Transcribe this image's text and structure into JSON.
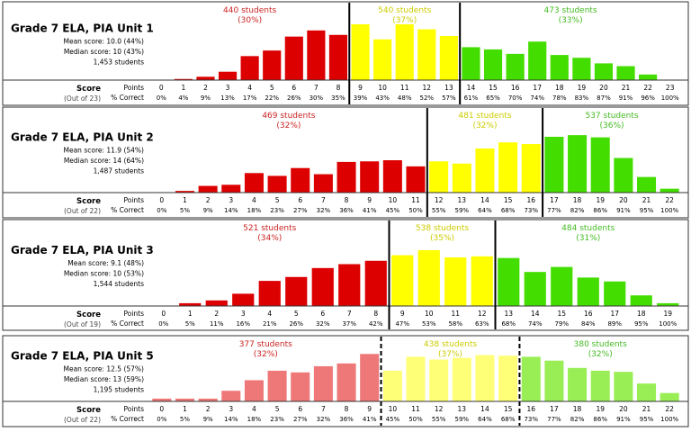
{
  "colors": {
    "red": "#dd0000",
    "yellow": "#ffff00",
    "green": "#44dd00",
    "red_light": "#ee7777",
    "yellow_light": "#ffff77",
    "green_light": "#99ee55",
    "red_text": "#cc2222",
    "yellow_text": "#cccc00",
    "green_text": "#44bb22",
    "border": "#333333"
  },
  "labels": {
    "score": "Score",
    "points": "Points",
    "pct": "% Correct"
  },
  "chart_data": [
    {
      "type": "bar",
      "title": "Grade 7 ELA, PIA Unit 1",
      "stats": [
        "Mean score: 10.0 (44%)",
        "Median score: 10 (43%)",
        "1,453 students"
      ],
      "out_of": "(Out of 23)",
      "categories": [
        "0",
        "1",
        "2",
        "3",
        "4",
        "5",
        "6",
        "7",
        "8",
        "9",
        "10",
        "11",
        "12",
        "13",
        "14",
        "15",
        "16",
        "17",
        "18",
        "19",
        "20",
        "21",
        "22",
        "23"
      ],
      "pct_correct": [
        "0%",
        "4%",
        "9%",
        "13%",
        "17%",
        "22%",
        "26%",
        "30%",
        "35%",
        "39%",
        "43%",
        "48%",
        "52%",
        "57%",
        "61%",
        "65%",
        "70%",
        "74%",
        "78%",
        "83%",
        "87%",
        "91%",
        "96%",
        "100%"
      ],
      "values": [
        0,
        2,
        6,
        15,
        43,
        53,
        78,
        89,
        81,
        100,
        73,
        100,
        91,
        79,
        59,
        55,
        47,
        69,
        45,
        40,
        30,
        25,
        10,
        0
      ],
      "ylim": [
        0,
        100
      ],
      "groups": [
        {
          "label": "440 students",
          "pct": "(30%)",
          "start": 0,
          "end": 8,
          "color": "red"
        },
        {
          "label": "540 students",
          "pct": "(37%)",
          "start": 9,
          "end": 13,
          "color": "yellow"
        },
        {
          "label": "473 students",
          "pct": "(33%)",
          "start": 14,
          "end": 23,
          "color": "green"
        }
      ],
      "dashed": false
    },
    {
      "type": "bar",
      "title": "Grade 7 ELA, PIA Unit 2",
      "stats": [
        "Mean score: 11.9 (54%)",
        "Median score: 14 (64%)",
        "1,487 students"
      ],
      "out_of": "(Out of 22)",
      "categories": [
        "0",
        "1",
        "2",
        "3",
        "4",
        "5",
        "6",
        "7",
        "8",
        "9",
        "10",
        "11",
        "12",
        "13",
        "14",
        "15",
        "16",
        "17",
        "18",
        "19",
        "20",
        "21",
        "22"
      ],
      "pct_correct": [
        "0%",
        "5%",
        "9%",
        "14%",
        "18%",
        "23%",
        "27%",
        "32%",
        "36%",
        "41%",
        "45%",
        "50%",
        "55%",
        "59%",
        "64%",
        "68%",
        "73%",
        "77%",
        "82%",
        "86%",
        "91%",
        "95%",
        "100%"
      ],
      "values": [
        0,
        3,
        12,
        14,
        35,
        30,
        44,
        33,
        55,
        56,
        58,
        47,
        56,
        52,
        79,
        90,
        87,
        100,
        103,
        99,
        62,
        28,
        7
      ],
      "ylim": [
        0,
        100
      ],
      "groups": [
        {
          "label": "469 students",
          "pct": "(32%)",
          "start": 0,
          "end": 11,
          "color": "red"
        },
        {
          "label": "481 students",
          "pct": "(32%)",
          "start": 12,
          "end": 16,
          "color": "yellow"
        },
        {
          "label": "537 students",
          "pct": "(36%)",
          "start": 17,
          "end": 22,
          "color": "green"
        }
      ],
      "dashed": false
    },
    {
      "type": "bar",
      "title": "Grade 7 ELA, PIA Unit 3",
      "stats": [
        "Mean score: 9.1 (48%)",
        "Median score: 10 (53%)",
        "1,544 students"
      ],
      "out_of": "(Out of 19)",
      "categories": [
        "0",
        "1",
        "2",
        "3",
        "4",
        "5",
        "6",
        "7",
        "8",
        "9",
        "10",
        "11",
        "12",
        "13",
        "14",
        "15",
        "16",
        "17",
        "18",
        "19"
      ],
      "pct_correct": [
        "0%",
        "5%",
        "11%",
        "16%",
        "21%",
        "26%",
        "32%",
        "37%",
        "42%",
        "47%",
        "53%",
        "58%",
        "63%",
        "68%",
        "74%",
        "79%",
        "84%",
        "89%",
        "95%",
        "100%"
      ],
      "values": [
        0,
        5,
        10,
        22,
        45,
        52,
        68,
        75,
        81,
        91,
        100,
        87,
        89,
        86,
        61,
        70,
        51,
        44,
        19,
        5
      ],
      "ylim": [
        0,
        100
      ],
      "groups": [
        {
          "label": "521 students",
          "pct": "(34%)",
          "start": 0,
          "end": 8,
          "color": "red"
        },
        {
          "label": "538 students",
          "pct": "(35%)",
          "start": 9,
          "end": 12,
          "color": "yellow"
        },
        {
          "label": "484 students",
          "pct": "(31%)",
          "start": 13,
          "end": 19,
          "color": "green"
        }
      ],
      "dashed": false
    },
    {
      "type": "bar",
      "title": "Grade 7 ELA, PIA Unit 5",
      "stats": [
        "Mean score: 12.5 (57%)",
        "Median score: 13 (59%)",
        "1,195 students"
      ],
      "out_of": "(Out of 22)",
      "categories": [
        "0",
        "1",
        "2",
        "3",
        "4",
        "5",
        "6",
        "7",
        "8",
        "9",
        "10",
        "11",
        "12",
        "13",
        "14",
        "15",
        "16",
        "17",
        "18",
        "19",
        "20",
        "21",
        "22"
      ],
      "pct_correct": [
        "0%",
        "5%",
        "9%",
        "14%",
        "18%",
        "23%",
        "27%",
        "32%",
        "36%",
        "41%",
        "45%",
        "50%",
        "55%",
        "59%",
        "64%",
        "68%",
        "73%",
        "77%",
        "82%",
        "86%",
        "91%",
        "95%",
        "100%"
      ],
      "values": [
        5,
        5,
        5,
        19,
        38,
        55,
        52,
        63,
        68,
        85,
        55,
        80,
        75,
        78,
        83,
        82,
        80,
        73,
        60,
        55,
        53,
        32,
        15
      ],
      "ylim": [
        0,
        100
      ],
      "groups": [
        {
          "label": "377 students",
          "pct": "(32%)",
          "start": 0,
          "end": 9,
          "color": "red_light"
        },
        {
          "label": "438 students",
          "pct": "(37%)",
          "start": 10,
          "end": 15,
          "color": "yellow_light"
        },
        {
          "label": "380 students",
          "pct": "(32%)",
          "start": 16,
          "end": 22,
          "color": "green_light"
        }
      ],
      "dashed": true
    }
  ]
}
